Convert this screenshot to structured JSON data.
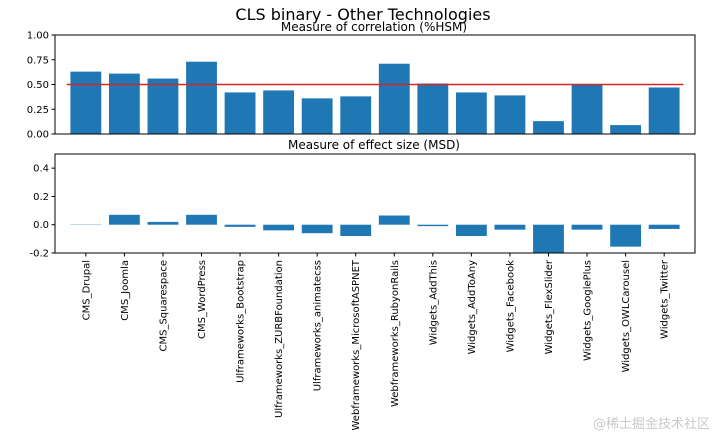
{
  "figure_title": "CLS binary - Other Technologies",
  "watermark": "@稀土掘金技术社区",
  "colors": {
    "bar": "#1f77b4",
    "threshold": "#d62728",
    "axis": "#000000"
  },
  "chart_data": [
    {
      "type": "bar",
      "title": "Measure of correlation (%HSM)",
      "xlabel": "",
      "ylabel": "",
      "ylim": [
        0,
        1.0
      ],
      "yticks": [
        0.0,
        0.25,
        0.5,
        0.75,
        1.0
      ],
      "ytick_labels": [
        "0.00",
        "0.25",
        "0.50",
        "0.75",
        "1.00"
      ],
      "threshold": 0.5,
      "categories": [
        "CMS_Drupal",
        "CMS_Joomla",
        "CMS_Squarespace",
        "CMS_WordPress",
        "Ulframeworks_Bootstrap",
        "Ulframeworks_ZURBFoundation",
        "Ulframeworks_animatecss",
        "Webframeworks_MicrosoftASPNET",
        "Webframeworks_RubyonRails",
        "Widgets_AddThis",
        "Widgets_AddToAny",
        "Widgets_Facebook",
        "Widgets_FlexSlider",
        "Widgets_GooglePlus",
        "Widgets_OWLCarousel",
        "Widgets_Twitter"
      ],
      "values": [
        0.63,
        0.61,
        0.56,
        0.73,
        0.42,
        0.44,
        0.36,
        0.38,
        0.71,
        0.51,
        0.42,
        0.39,
        0.13,
        0.5,
        0.09,
        0.47
      ]
    },
    {
      "type": "bar",
      "title": "Measure of effect size (MSD)",
      "xlabel": "",
      "ylabel": "",
      "ylim": [
        -0.2,
        0.5
      ],
      "yticks": [
        -0.2,
        0.0,
        0.2,
        0.4
      ],
      "ytick_labels": [
        "-0.2",
        "0.0",
        "0.2",
        "0.4"
      ],
      "categories": [
        "CMS_Drupal",
        "CMS_Joomla",
        "CMS_Squarespace",
        "CMS_WordPress",
        "Ulframeworks_Bootstrap",
        "Ulframeworks_ZURBFoundation",
        "Ulframeworks_animatecss",
        "Webframeworks_MicrosoftASPNET",
        "Webframeworks_RubyonRails",
        "Widgets_AddThis",
        "Widgets_AddToAny",
        "Widgets_Facebook",
        "Widgets_FlexSlider",
        "Widgets_GooglePlus",
        "Widgets_OWLCarousel",
        "Widgets_Twitter"
      ],
      "values": [
        0.0,
        0.07,
        0.02,
        0.07,
        -0.015,
        -0.04,
        -0.06,
        -0.08,
        0.065,
        -0.01,
        -0.08,
        -0.035,
        -0.2,
        -0.035,
        -0.155,
        -0.03
      ]
    }
  ]
}
